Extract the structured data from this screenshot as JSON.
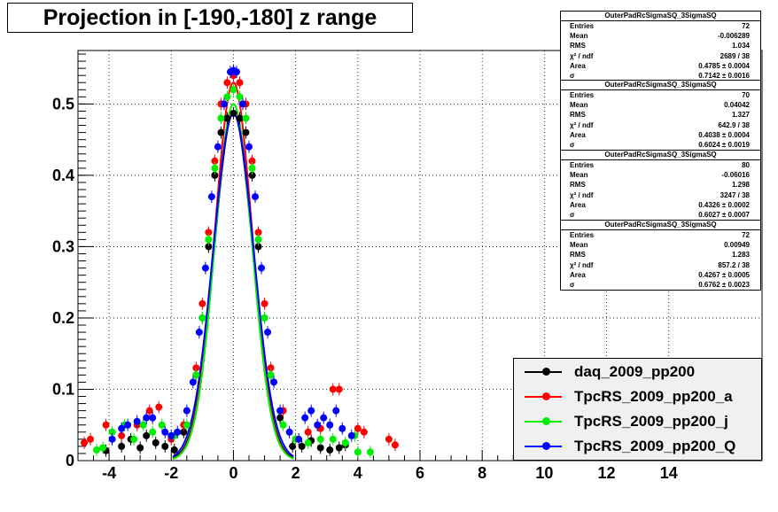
{
  "title": "Projection in [-190,-180] z range",
  "stats_boxes": [
    {
      "name": "OuterPadRcSigmaSQ_3SigmaSQ",
      "rows": [
        {
          "label": "Entries",
          "value": "72"
        },
        {
          "label": "Mean",
          "value": "-0.006289"
        },
        {
          "label": "RMS",
          "value": "1.034"
        },
        {
          "label": "χ² / ndf",
          "value": "2689 / 38"
        },
        {
          "label": "Area",
          "value": "0.4785 ± 0.0004"
        },
        {
          "label": "σ",
          "value": "0.7142 ± 0.0016"
        }
      ]
    },
    {
      "name": "OuterPadRcSigmaSQ_3SigmaSQ",
      "rows": [
        {
          "label": "Entries",
          "value": "70"
        },
        {
          "label": "Mean",
          "value": "0.04042"
        },
        {
          "label": "RMS",
          "value": "1.327"
        },
        {
          "label": "χ² / ndf",
          "value": "642.9 / 38"
        },
        {
          "label": "Area",
          "value": "0.4038 ± 0.0004"
        },
        {
          "label": "σ",
          "value": "0.6024 ± 0.0019"
        }
      ]
    },
    {
      "name": "OuterPadRcSigmaSQ_3SigmaSQ",
      "rows": [
        {
          "label": "Entries",
          "value": "80"
        },
        {
          "label": "Mean",
          "value": "-0.06016"
        },
        {
          "label": "RMS",
          "value": "1.298"
        },
        {
          "label": "χ² / ndf",
          "value": "3247 / 38"
        },
        {
          "label": "Area",
          "value": "0.4326 ± 0.0002"
        },
        {
          "label": "σ",
          "value": "0.6027 ± 0.0007"
        }
      ]
    },
    {
      "name": "OuterPadRcSigmaSQ_3SigmaSQ",
      "rows": [
        {
          "label": "Entries",
          "value": "72"
        },
        {
          "label": "Mean",
          "value": "0.00949"
        },
        {
          "label": "RMS",
          "value": "1.283"
        },
        {
          "label": "χ² / ndf",
          "value": "857.2 / 38"
        },
        {
          "label": "Area",
          "value": "0.4267 ± 0.0005"
        },
        {
          "label": "σ",
          "value": "0.6762 ± 0.0023"
        }
      ]
    }
  ],
  "legend": [
    {
      "label": "daq_2009_pp200",
      "color": "#000000"
    },
    {
      "label": "TpcRS_2009_pp200_a",
      "color": "#ff0000"
    },
    {
      "label": "TpcRS_2009_pp200_j",
      "color": "#00ee00"
    },
    {
      "label": "TpcRS_2009_pp200_Q",
      "color": "#0000ff"
    }
  ],
  "chart_data": {
    "type": "scatter",
    "title": "Projection in [-190,-180] z range",
    "xlabel": "",
    "ylabel": "",
    "xlim": [
      -5,
      17
    ],
    "ylim": [
      0,
      0.575
    ],
    "grid": true,
    "x_ticks": [
      -4,
      -2,
      0,
      2,
      4,
      6,
      8,
      10,
      12,
      14
    ],
    "x_tick_labels": [
      "-4",
      "-2",
      "0",
      "2",
      "4",
      "6",
      "8",
      "10",
      "12",
      "14"
    ],
    "y_ticks": [
      0,
      0.1,
      0.2,
      0.3,
      0.4,
      0.5
    ],
    "y_tick_labels": [
      "0",
      "0.1",
      "0.2",
      "0.3",
      "0.4",
      "0.5"
    ],
    "legend_position": "bottom-right",
    "series": [
      {
        "name": "daq_2009_pp200",
        "color": "#000000",
        "fit": {
          "amplitude": 0.487,
          "sigma": 0.62
        },
        "points": [
          [
            -4.1,
            0.014
          ],
          [
            -3.6,
            0.02
          ],
          [
            -3.3,
            0.03
          ],
          [
            -3.0,
            0.018
          ],
          [
            -2.8,
            0.035
          ],
          [
            -2.5,
            0.025
          ],
          [
            -2.2,
            0.02
          ],
          [
            -1.9,
            0.015
          ],
          [
            -1.6,
            0.04
          ],
          [
            -1.2,
            0.12
          ],
          [
            -1.0,
            0.2
          ],
          [
            -0.8,
            0.3
          ],
          [
            -0.6,
            0.4
          ],
          [
            -0.4,
            0.46
          ],
          [
            -0.2,
            0.48
          ],
          [
            0.0,
            0.487
          ],
          [
            0.2,
            0.48
          ],
          [
            0.4,
            0.46
          ],
          [
            0.6,
            0.4
          ],
          [
            0.8,
            0.3
          ],
          [
            1.0,
            0.2
          ],
          [
            1.2,
            0.12
          ],
          [
            1.5,
            0.06
          ],
          [
            1.9,
            0.02
          ],
          [
            2.2,
            0.02
          ],
          [
            2.5,
            0.028
          ],
          [
            2.8,
            0.018
          ],
          [
            3.1,
            0.015
          ],
          [
            3.4,
            0.018
          ],
          [
            3.6,
            0.022
          ]
        ]
      },
      {
        "name": "TpcRS_2009_pp200_a",
        "color": "#ff0000",
        "fit": {
          "amplitude": 0.53,
          "sigma": 0.6
        },
        "points": [
          [
            -4.8,
            0.025
          ],
          [
            -4.6,
            0.03
          ],
          [
            -4.1,
            0.05
          ],
          [
            -3.6,
            0.035
          ],
          [
            -3.1,
            0.05
          ],
          [
            -2.7,
            0.07
          ],
          [
            -2.4,
            0.075
          ],
          [
            -2.0,
            0.03
          ],
          [
            -1.6,
            0.05
          ],
          [
            -1.2,
            0.13
          ],
          [
            -1.0,
            0.22
          ],
          [
            -0.8,
            0.32
          ],
          [
            -0.6,
            0.42
          ],
          [
            -0.4,
            0.5
          ],
          [
            -0.2,
            0.53
          ],
          [
            0.0,
            0.54
          ],
          [
            0.2,
            0.53
          ],
          [
            0.4,
            0.5
          ],
          [
            0.6,
            0.42
          ],
          [
            0.8,
            0.32
          ],
          [
            1.0,
            0.22
          ],
          [
            1.2,
            0.13
          ],
          [
            1.6,
            0.07
          ],
          [
            2.0,
            0.03
          ],
          [
            2.4,
            0.04
          ],
          [
            2.8,
            0.045
          ],
          [
            3.2,
            0.1
          ],
          [
            3.4,
            0.1
          ],
          [
            4.0,
            0.045
          ],
          [
            4.2,
            0.04
          ],
          [
            5.0,
            0.03
          ],
          [
            5.2,
            0.022
          ]
        ]
      },
      {
        "name": "TpcRS_2009_pp200_j",
        "color": "#00ee00",
        "fit": {
          "amplitude": 0.5,
          "sigma": 0.6
        },
        "points": [
          [
            -4.4,
            0.015
          ],
          [
            -4.2,
            0.018
          ],
          [
            -3.9,
            0.04
          ],
          [
            -3.5,
            0.05
          ],
          [
            -3.2,
            0.03
          ],
          [
            -2.9,
            0.05
          ],
          [
            -2.6,
            0.04
          ],
          [
            -2.3,
            0.05
          ],
          [
            -1.9,
            0.035
          ],
          [
            -1.5,
            0.05
          ],
          [
            -1.2,
            0.12
          ],
          [
            -1.0,
            0.2
          ],
          [
            -0.8,
            0.31
          ],
          [
            -0.6,
            0.41
          ],
          [
            -0.4,
            0.48
          ],
          [
            -0.2,
            0.51
          ],
          [
            0.0,
            0.52
          ],
          [
            0.2,
            0.51
          ],
          [
            0.4,
            0.48
          ],
          [
            0.6,
            0.41
          ],
          [
            0.8,
            0.31
          ],
          [
            1.0,
            0.2
          ],
          [
            1.2,
            0.12
          ],
          [
            1.6,
            0.05
          ],
          [
            2.0,
            0.03
          ],
          [
            2.4,
            0.025
          ],
          [
            2.8,
            0.03
          ],
          [
            3.2,
            0.03
          ],
          [
            3.6,
            0.025
          ],
          [
            3.9,
            0.035
          ],
          [
            4.0,
            0.012
          ],
          [
            4.4,
            0.012
          ]
        ]
      },
      {
        "name": "TpcRS_2009_pp200_Q",
        "color": "#0000ff",
        "fit": {
          "amplitude": 0.487,
          "sigma": 0.65
        },
        "points": [
          [
            -3.9,
            0.03
          ],
          [
            -3.6,
            0.045
          ],
          [
            -3.4,
            0.05
          ],
          [
            -3.1,
            0.055
          ],
          [
            -2.8,
            0.06
          ],
          [
            -2.6,
            0.06
          ],
          [
            -2.2,
            0.04
          ],
          [
            -2.0,
            0.035
          ],
          [
            -1.8,
            0.04
          ],
          [
            -1.5,
            0.07
          ],
          [
            -1.3,
            0.11
          ],
          [
            -1.1,
            0.18
          ],
          [
            -0.9,
            0.27
          ],
          [
            -0.7,
            0.37
          ],
          [
            -0.5,
            0.44
          ],
          [
            -0.3,
            0.5
          ],
          [
            -0.1,
            0.545
          ],
          [
            0.0,
            0.547
          ],
          [
            0.1,
            0.545
          ],
          [
            0.3,
            0.5
          ],
          [
            0.5,
            0.44
          ],
          [
            0.7,
            0.37
          ],
          [
            0.9,
            0.27
          ],
          [
            1.1,
            0.18
          ],
          [
            1.3,
            0.11
          ],
          [
            1.5,
            0.07
          ],
          [
            1.8,
            0.04
          ],
          [
            2.1,
            0.03
          ],
          [
            2.3,
            0.06
          ],
          [
            2.5,
            0.07
          ],
          [
            2.7,
            0.05
          ],
          [
            2.9,
            0.06
          ],
          [
            3.1,
            0.05
          ],
          [
            3.3,
            0.07
          ],
          [
            3.5,
            0.045
          ],
          [
            3.8,
            0.035
          ]
        ]
      }
    ]
  }
}
